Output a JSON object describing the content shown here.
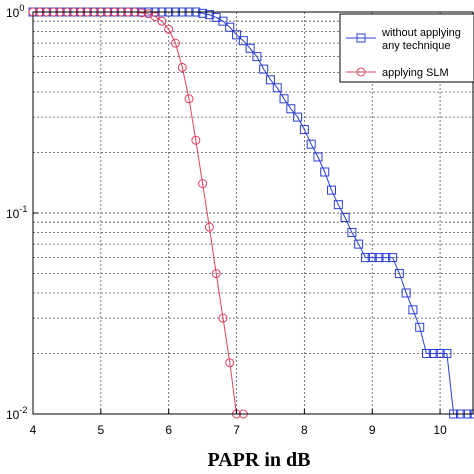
{
  "chart_data": {
    "type": "line",
    "title": "",
    "xlabel": "PAPR in dB",
    "ylabel": "",
    "xlim": [
      4,
      10.5
    ],
    "ylim": [
      0.01,
      1
    ],
    "yscale": "log",
    "grid": true,
    "legend_position": "top-right",
    "x_ticks": [
      "4",
      "5",
      "6",
      "7",
      "8",
      "9",
      "10"
    ],
    "y_ticks": [
      {
        "base": "10",
        "exp": "0",
        "value": 1
      },
      {
        "base": "10",
        "exp": "-1",
        "value": 0.1
      },
      {
        "base": "10",
        "exp": "-2",
        "value": 0.01
      }
    ],
    "series": [
      {
        "name": "without applying any technique",
        "legend_lines": [
          "without applying",
          "any technique"
        ],
        "color": "#2b3fd6",
        "marker": "square",
        "x": [
          4.0,
          4.1,
          4.2,
          4.3,
          4.4,
          4.5,
          4.6,
          4.7,
          4.8,
          4.9,
          5.0,
          5.1,
          5.2,
          5.3,
          5.4,
          5.5,
          5.6,
          5.7,
          5.8,
          5.9,
          6.0,
          6.1,
          6.2,
          6.3,
          6.4,
          6.5,
          6.6,
          6.7,
          6.8,
          6.9,
          7.0,
          7.1,
          7.2,
          7.3,
          7.4,
          7.5,
          7.6,
          7.7,
          7.8,
          7.9,
          8.0,
          8.1,
          8.2,
          8.3,
          8.4,
          8.5,
          8.6,
          8.7,
          8.8,
          8.9,
          9.0,
          9.1,
          9.2,
          9.3,
          9.4,
          9.5,
          9.6,
          9.7,
          9.8,
          9.9,
          10.0,
          10.1,
          10.2,
          10.3,
          10.4,
          10.5
        ],
        "y": [
          1.0,
          1.0,
          1.0,
          1.0,
          1.0,
          1.0,
          1.0,
          1.0,
          1.0,
          1.0,
          1.0,
          1.0,
          1.0,
          1.0,
          1.0,
          1.0,
          1.0,
          1.0,
          1.0,
          1.0,
          1.0,
          1.0,
          1.0,
          1.0,
          1.0,
          0.985,
          0.97,
          0.94,
          0.9,
          0.84,
          0.77,
          0.72,
          0.66,
          0.6,
          0.52,
          0.46,
          0.42,
          0.37,
          0.33,
          0.3,
          0.26,
          0.22,
          0.19,
          0.16,
          0.13,
          0.11,
          0.095,
          0.08,
          0.07,
          0.06,
          0.06,
          0.06,
          0.06,
          0.06,
          0.05,
          0.04,
          0.033,
          0.027,
          0.02,
          0.02,
          0.02,
          0.02,
          0.01,
          0.01,
          0.01,
          0.01
        ]
      },
      {
        "name": "applying SLM",
        "legend_lines": [
          "applying SLM"
        ],
        "color": "#e0405e",
        "marker": "circle",
        "x": [
          4.0,
          4.1,
          4.2,
          4.3,
          4.4,
          4.5,
          4.6,
          4.7,
          4.8,
          4.9,
          5.0,
          5.1,
          5.2,
          5.3,
          5.4,
          5.5,
          5.6,
          5.7,
          5.8,
          5.9,
          6.0,
          6.1,
          6.2,
          6.3,
          6.4,
          6.5,
          6.6,
          6.7,
          6.8,
          6.9,
          7.0,
          7.1
        ],
        "y": [
          1.0,
          1.0,
          1.0,
          1.0,
          1.0,
          1.0,
          1.0,
          1.0,
          1.0,
          1.0,
          1.0,
          1.0,
          1.0,
          1.0,
          1.0,
          1.0,
          0.99,
          0.98,
          0.95,
          0.9,
          0.82,
          0.7,
          0.53,
          0.37,
          0.23,
          0.14,
          0.085,
          0.05,
          0.03,
          0.018,
          0.01,
          0.01
        ]
      }
    ]
  }
}
